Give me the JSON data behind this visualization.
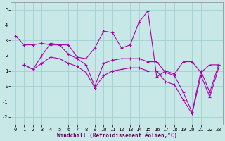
{
  "xlabel": "Windchill (Refroidissement éolien,°C)",
  "xlim": [
    -0.5,
    23.5
  ],
  "ylim": [
    -2.5,
    5.5
  ],
  "yticks": [
    -2,
    -1,
    0,
    1,
    2,
    3,
    4,
    5
  ],
  "xticks": [
    0,
    1,
    2,
    3,
    4,
    5,
    6,
    7,
    8,
    9,
    10,
    11,
    12,
    13,
    14,
    15,
    16,
    17,
    18,
    19,
    20,
    21,
    22,
    23
  ],
  "bg_color": "#c8e8e8",
  "line_color": "#aa00aa",
  "grid_color": "#a0d0d0",
  "lines": [
    {
      "x": [
        0,
        1,
        2,
        3,
        4,
        5,
        6,
        7,
        8,
        9,
        10,
        11,
        12,
        13,
        14,
        15,
        16,
        17,
        18,
        19,
        20,
        21,
        22,
        23
      ],
      "y": [
        3.3,
        2.7,
        2.7,
        2.8,
        2.7,
        2.7,
        2.7,
        1.9,
        1.8,
        2.5,
        3.6,
        3.5,
        2.5,
        2.7,
        4.2,
        4.9,
        0.6,
        1.0,
        0.8,
        1.6,
        1.6,
        0.9,
        1.4,
        1.4
      ]
    },
    {
      "x": [
        1,
        2,
        3,
        4,
        5,
        6,
        7,
        8,
        9,
        10,
        11,
        12,
        13,
        14,
        15,
        16,
        17,
        18,
        19,
        20,
        21,
        22,
        23
      ],
      "y": [
        1.4,
        1.1,
        2.0,
        2.8,
        2.7,
        2.1,
        1.8,
        1.4,
        0.0,
        1.5,
        1.7,
        1.8,
        1.8,
        1.8,
        1.6,
        1.6,
        0.9,
        0.7,
        -0.4,
        -1.7,
        1.0,
        -0.4,
        1.4
      ]
    },
    {
      "x": [
        1,
        2,
        3,
        4,
        5,
        6,
        7,
        8,
        9,
        10,
        11,
        12,
        13,
        14,
        15,
        16,
        17,
        18,
        19,
        20,
        21,
        22,
        23
      ],
      "y": [
        1.4,
        1.1,
        1.5,
        1.9,
        1.8,
        1.5,
        1.3,
        0.9,
        -0.1,
        0.7,
        1.0,
        1.1,
        1.2,
        1.2,
        1.0,
        1.0,
        0.3,
        0.1,
        -0.9,
        -1.8,
        0.7,
        -0.7,
        1.2
      ]
    }
  ]
}
